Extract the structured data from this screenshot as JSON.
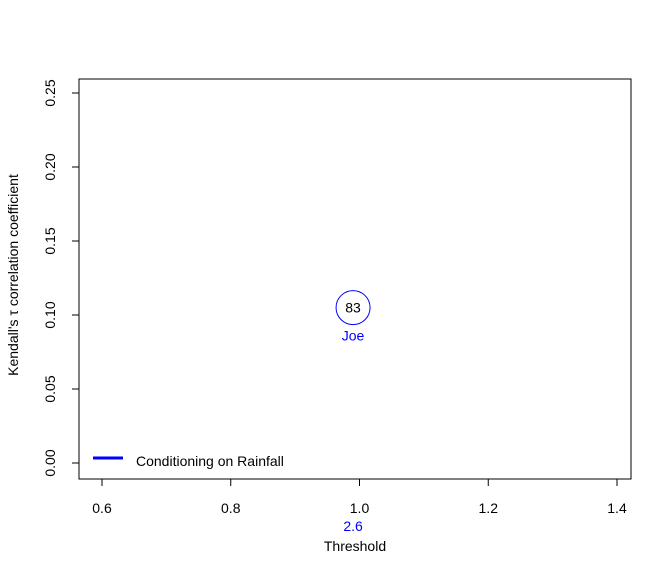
{
  "chart_data": {
    "type": "scatter",
    "title": "",
    "xlabel": "Threshold",
    "ylabel": "Kendall's τ correlation coefficient",
    "xlim": [
      0.6,
      1.4
    ],
    "ylim": [
      0.0,
      0.25
    ],
    "x_ticks": [
      0.6,
      0.8,
      1.0,
      1.2,
      1.4
    ],
    "x_tick_labels": [
      "0.6",
      "0.8",
      "1.0",
      "1.2",
      "1.4"
    ],
    "y_ticks": [
      0.0,
      0.05,
      0.1,
      0.15,
      0.2,
      0.25
    ],
    "y_tick_labels": [
      "0.00",
      "0.05",
      "0.10",
      "0.15",
      "0.20",
      "0.25"
    ],
    "grid": false,
    "legend_position": "bottom-left",
    "series": [
      {
        "name": "Conditioning on Rainfall",
        "color": "#0000ff",
        "points": [
          {
            "x": 0.99,
            "y": 0.105,
            "label": "83",
            "sublabel": "Joe",
            "threshold_label": "2.6"
          }
        ]
      }
    ]
  },
  "legend": {
    "label": "Conditioning on Rainfall"
  }
}
